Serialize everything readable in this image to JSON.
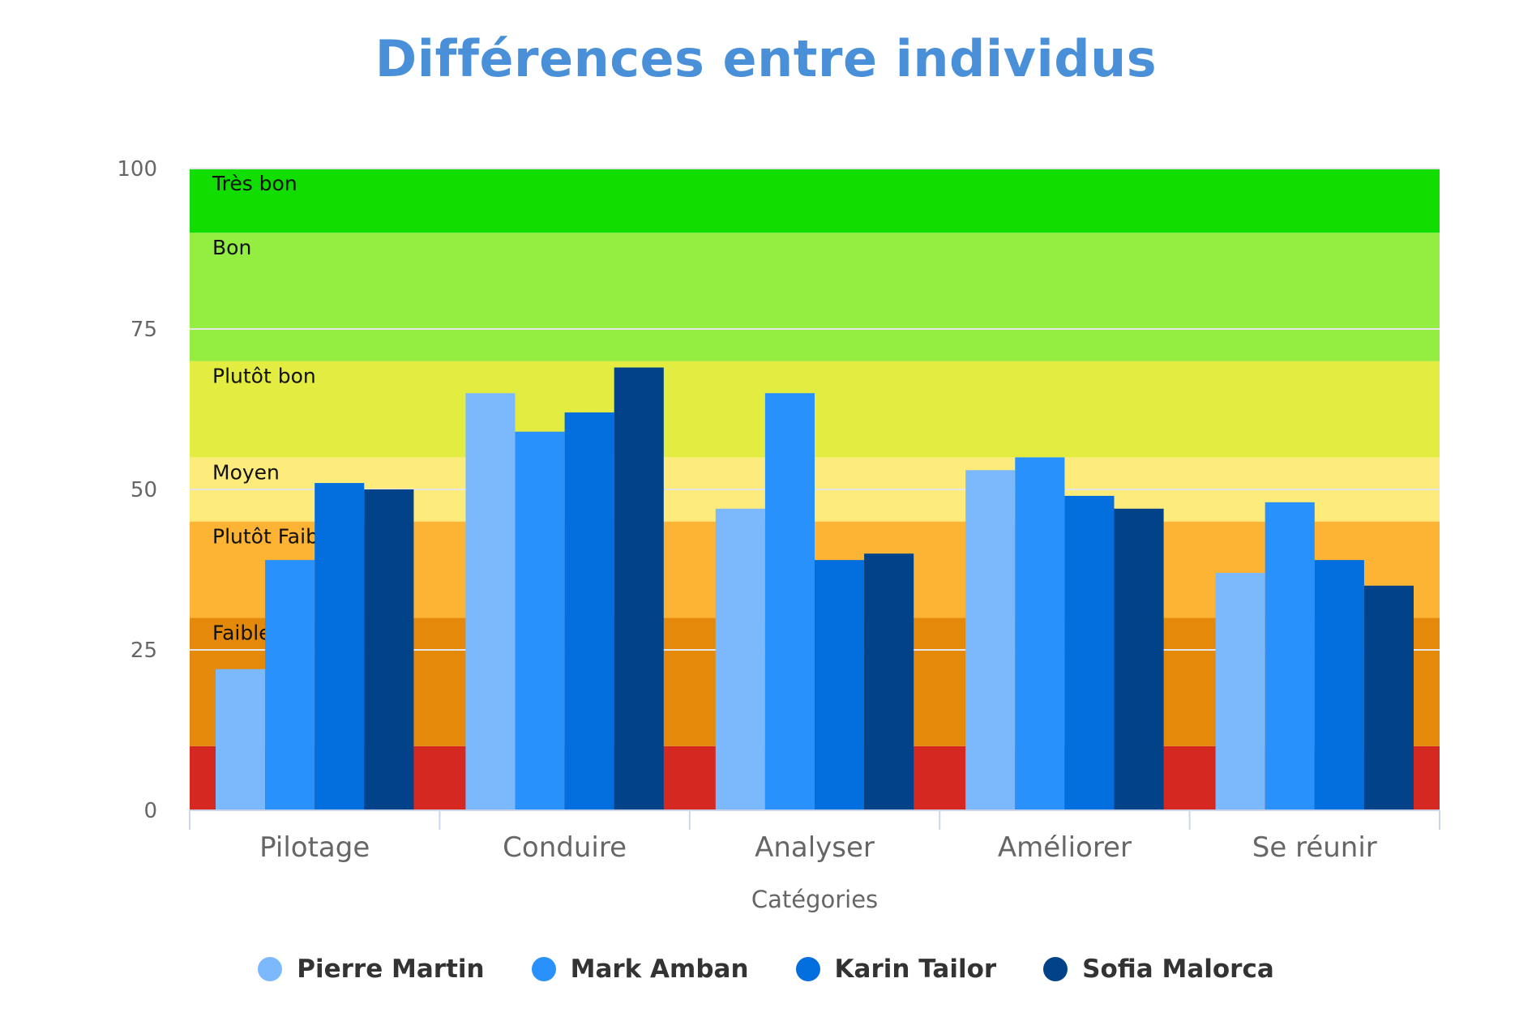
{
  "chart_data": {
    "type": "bar",
    "title": "Différences entre individus",
    "xlabel": "Catégories",
    "ylabel": "",
    "ylim": [
      0,
      100
    ],
    "y_ticks": [
      "0",
      "25",
      "50",
      "75",
      "100"
    ],
    "categories": [
      "Pilotage",
      "Conduire",
      "Analyser",
      "Améliorer",
      "Se réunir"
    ],
    "series": [
      {
        "name": "Pierre Martin",
        "color": "#7cb9fc",
        "values": [
          22,
          65,
          47,
          53,
          37
        ]
      },
      {
        "name": "Mark Amban",
        "color": "#2891fc",
        "values": [
          39,
          59,
          65,
          55,
          48
        ]
      },
      {
        "name": "Karin Tailor",
        "color": "#036edd",
        "values": [
          51,
          62,
          39,
          49,
          39
        ]
      },
      {
        "name": "Sofia Malorca",
        "color": "#014288",
        "values": [
          50,
          69,
          40,
          47,
          35
        ]
      }
    ],
    "plot_bands": [
      {
        "label": "",
        "from": 0,
        "to": 10,
        "color": "#d52820"
      },
      {
        "label": "Faible",
        "from": 10,
        "to": 30,
        "color": "#e5890b"
      },
      {
        "label": "Plutôt Faible",
        "from": 30,
        "to": 45,
        "color": "#fdb334"
      },
      {
        "label": "Moyen",
        "from": 45,
        "to": 55,
        "color": "#fdeb7b"
      },
      {
        "label": "Plutôt bon",
        "from": 55,
        "to": 70,
        "color": "#e3ec41"
      },
      {
        "label": "Bon",
        "from": 70,
        "to": 90,
        "color": "#93ee41"
      },
      {
        "label": "Très bon",
        "from": 90,
        "to": 100,
        "color": "#11dd00"
      }
    ],
    "grid": true,
    "legend_position": "bottom-center"
  }
}
